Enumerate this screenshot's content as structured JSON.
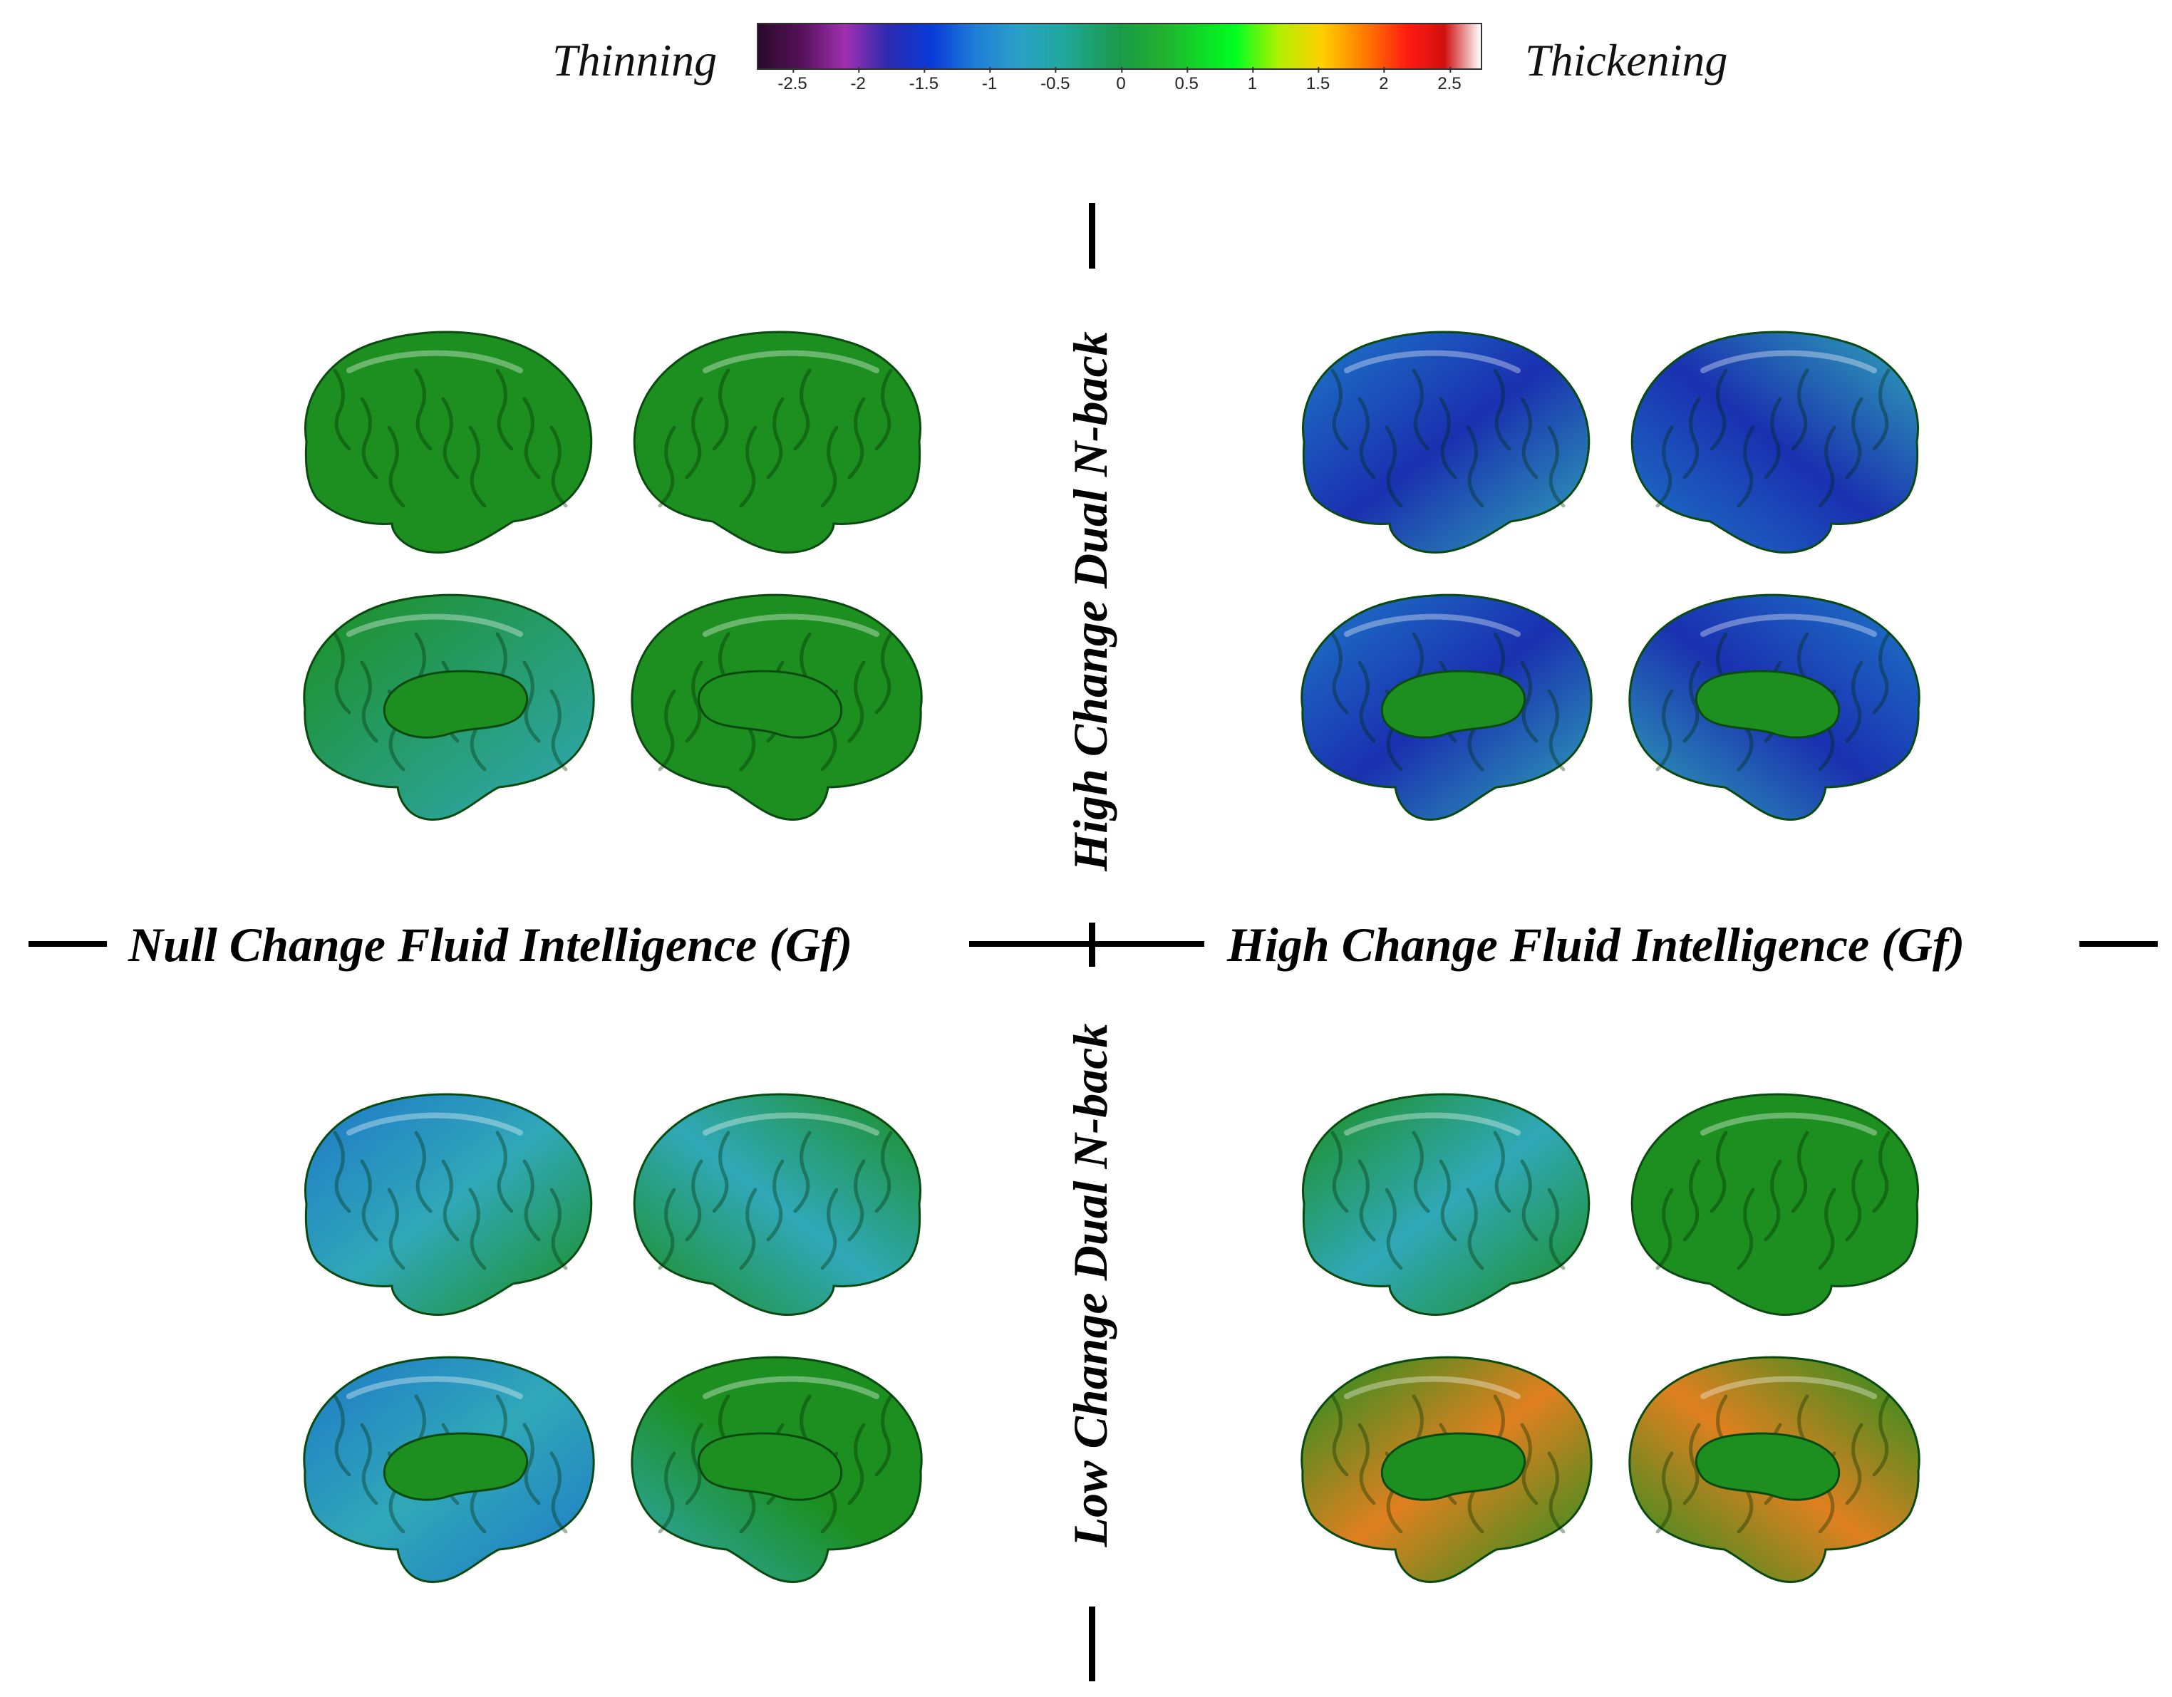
{
  "legend": {
    "left_label": "Thinning",
    "right_label": "Thickening",
    "ticks": [
      "-2.5",
      "-2",
      "-1.5",
      "-1",
      "-0.5",
      "0",
      "0.5",
      "1",
      "1.5",
      "2",
      "2.5"
    ]
  },
  "axes": {
    "top": "High Change Dual N-back",
    "bottom": "Low Change Dual N-back",
    "left": "Null Change Fluid Intelligence (Gf)",
    "right": "High Change Fluid Intelligence (Gf)"
  },
  "colors": {
    "green": "#1c8f20",
    "green_hi": "#3cc83a",
    "blue": "#1e78c8",
    "cyan": "#30a8b8",
    "deep_blue": "#1a30b0",
    "orange": "#e08020"
  },
  "panels": [
    {
      "name": "null-gf-high-nback",
      "pattern": "mostly-green"
    },
    {
      "name": "high-gf-high-nback",
      "pattern": "blue-thinning"
    },
    {
      "name": "null-gf-low-nback",
      "pattern": "mixed-blue-green"
    },
    {
      "name": "high-gf-low-nback",
      "pattern": "green-with-orange-medial"
    }
  ]
}
